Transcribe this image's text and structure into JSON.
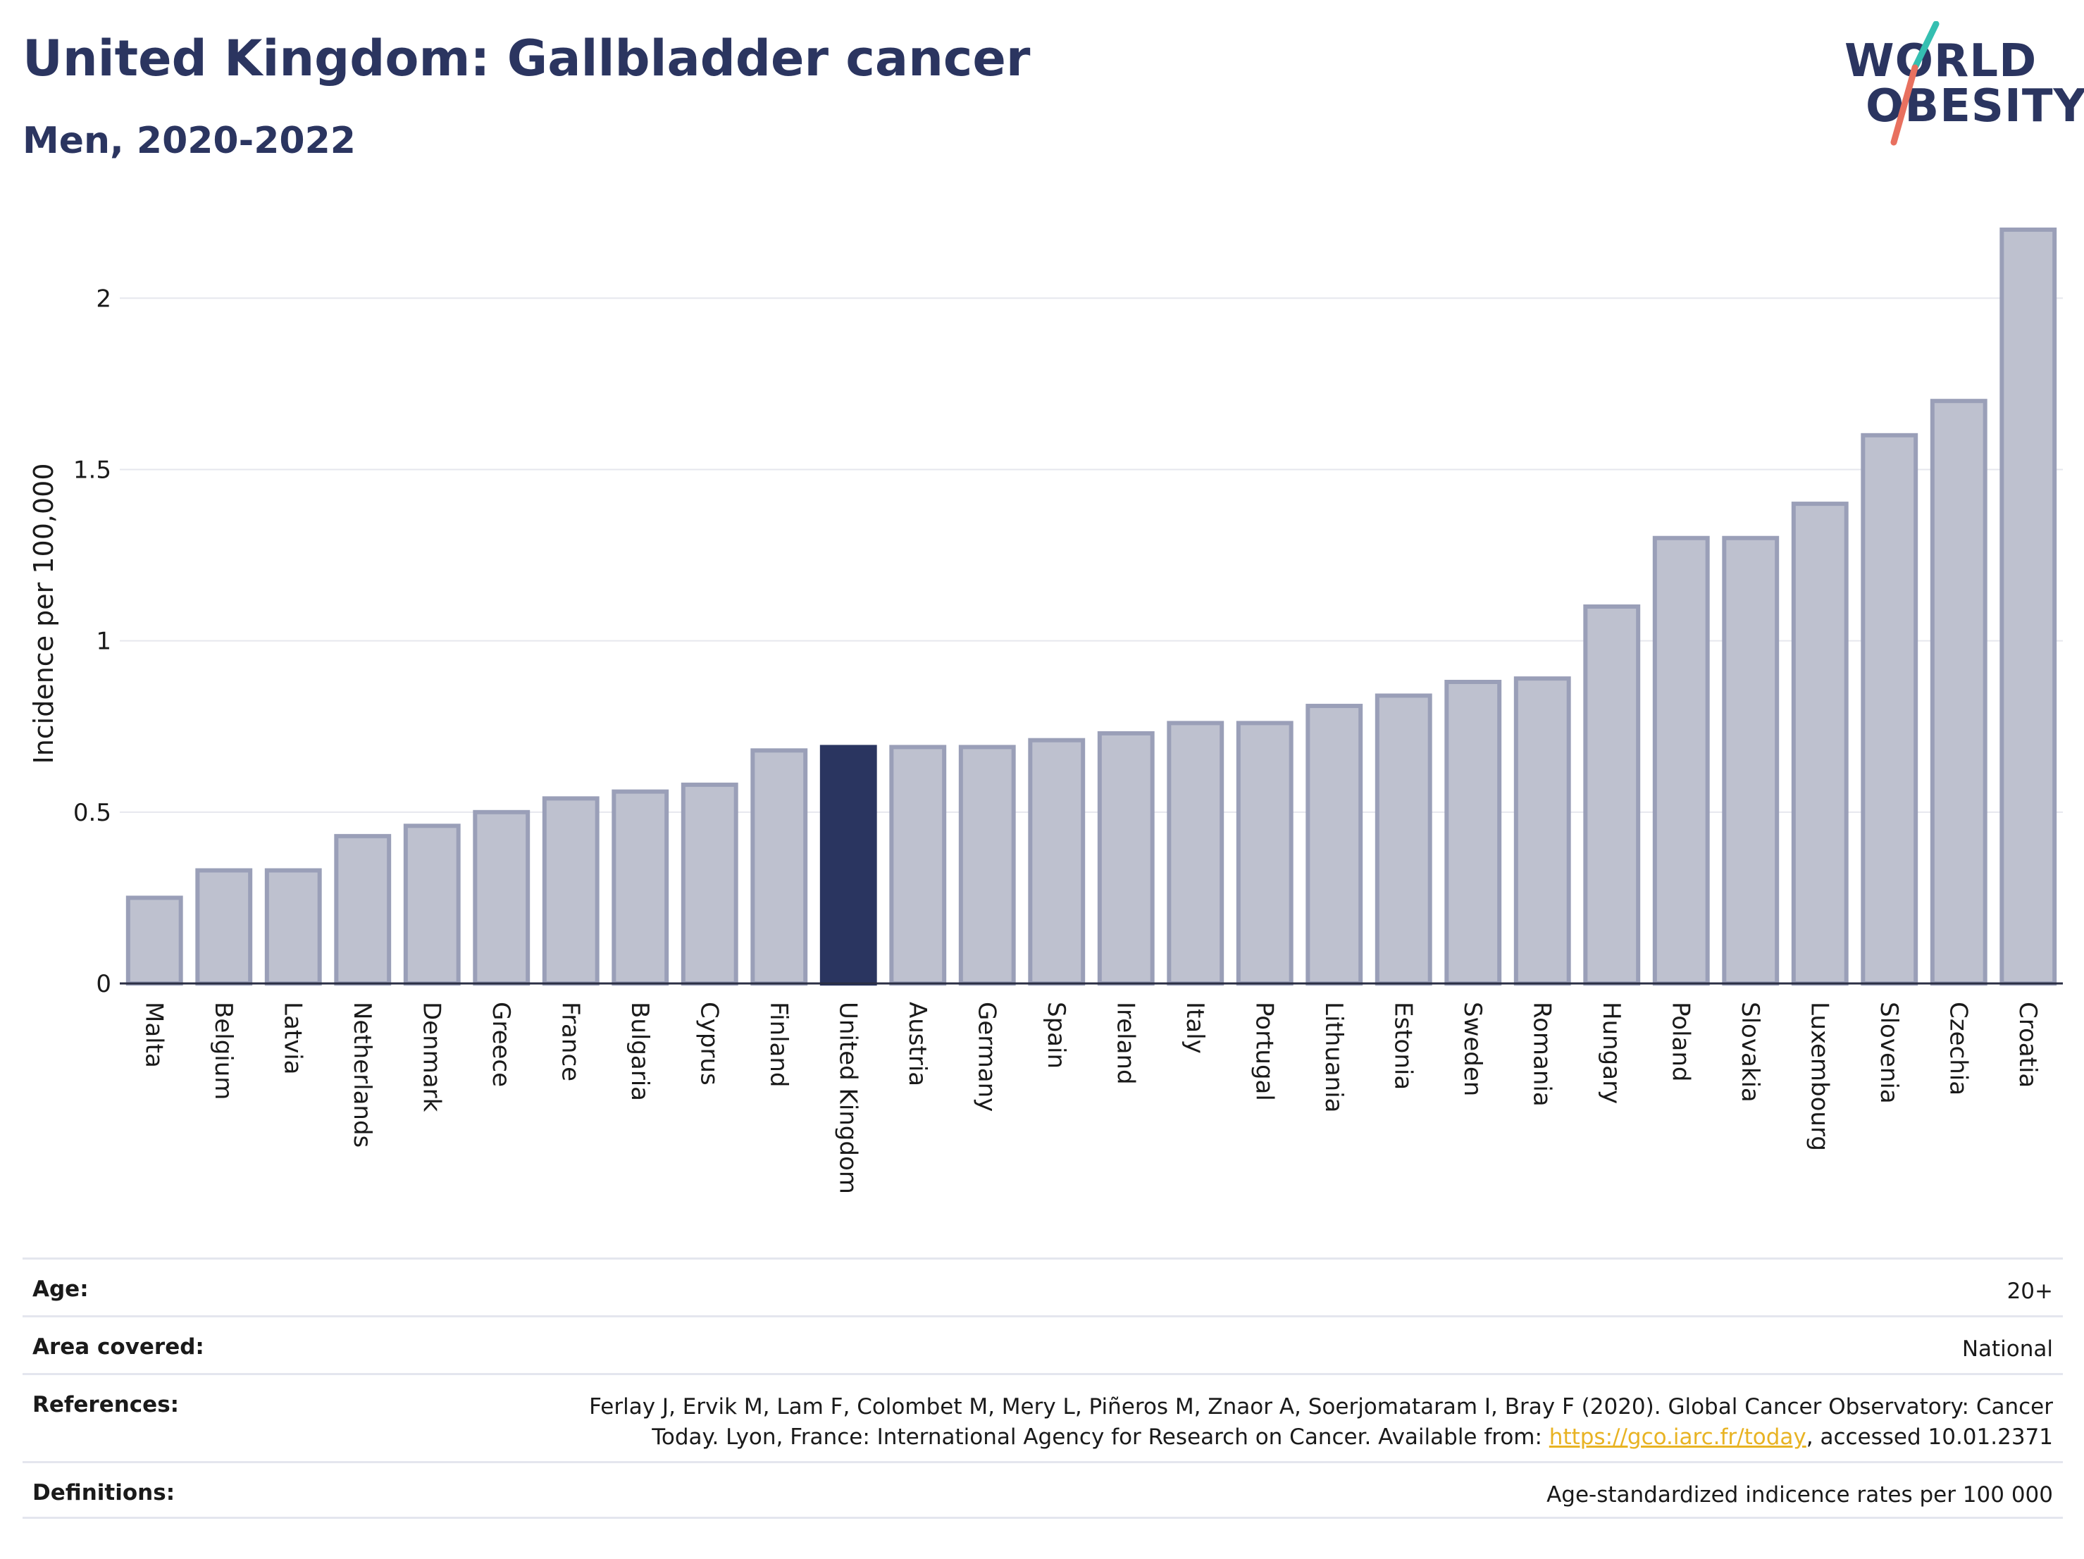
{
  "header": {
    "title": "United Kingdom: Gallbladder cancer",
    "subtitle": "Men, 2020-2022"
  },
  "logo": {
    "line1": "WORLD",
    "line2": "OBESITY",
    "accent_teal": "#35bfb1",
    "accent_coral": "#e8705f"
  },
  "colors": {
    "bar": "#bec1cf",
    "bar_border": "#9a9fb8",
    "highlight": "#2a3560",
    "axis_text": "#1a1a1a",
    "grid": "#e6e7ee"
  },
  "chart_data": {
    "type": "bar",
    "title": "United Kingdom: Gallbladder cancer",
    "subtitle": "Men, 2020-2022",
    "ylabel": "Incidence per 100,000",
    "xlabel": "",
    "ylim": [
      0,
      2.2
    ],
    "yticks": [
      0,
      0.5,
      1,
      1.5,
      2
    ],
    "ytick_labels": [
      "0",
      "0.5",
      "1",
      "1.5",
      "2"
    ],
    "grid": true,
    "highlight": "United Kingdom",
    "categories": [
      "Malta",
      "Belgium",
      "Latvia",
      "Netherlands",
      "Denmark",
      "Greece",
      "France",
      "Bulgaria",
      "Cyprus",
      "Finland",
      "United Kingdom",
      "Austria",
      "Germany",
      "Spain",
      "Ireland",
      "Italy",
      "Portugal",
      "Lithuania",
      "Estonia",
      "Sweden",
      "Romania",
      "Hungary",
      "Poland",
      "Slovakia",
      "Luxembourg",
      "Slovenia",
      "Czechia",
      "Croatia"
    ],
    "values": [
      0.25,
      0.33,
      0.33,
      0.43,
      0.46,
      0.5,
      0.54,
      0.56,
      0.58,
      0.68,
      0.69,
      0.69,
      0.69,
      0.71,
      0.73,
      0.76,
      0.76,
      0.81,
      0.84,
      0.88,
      0.89,
      1.1,
      1.3,
      1.3,
      1.4,
      1.6,
      1.7,
      2.2
    ]
  },
  "info": {
    "age_label": "Age:",
    "age_value": "20+",
    "area_label": "Area covered:",
    "area_value": "National",
    "references_label": "References:",
    "references_line1": "Ferlay J, Ervik M, Lam F, Colombet M, Mery L, Piñeros M, Znaor A, Soerjomataram I, Bray F (2020). Global Cancer Observatory: Cancer",
    "references_line2_pre": "Today. Lyon, France: International Agency for Research on Cancer. Available from: ",
    "references_link": "https://gco.iarc.fr/today",
    "references_line2_post": ", accessed 10.01.2371",
    "definitions_label": "Definitions:",
    "definitions_value": "Age-standardized indicence rates per 100 000"
  }
}
